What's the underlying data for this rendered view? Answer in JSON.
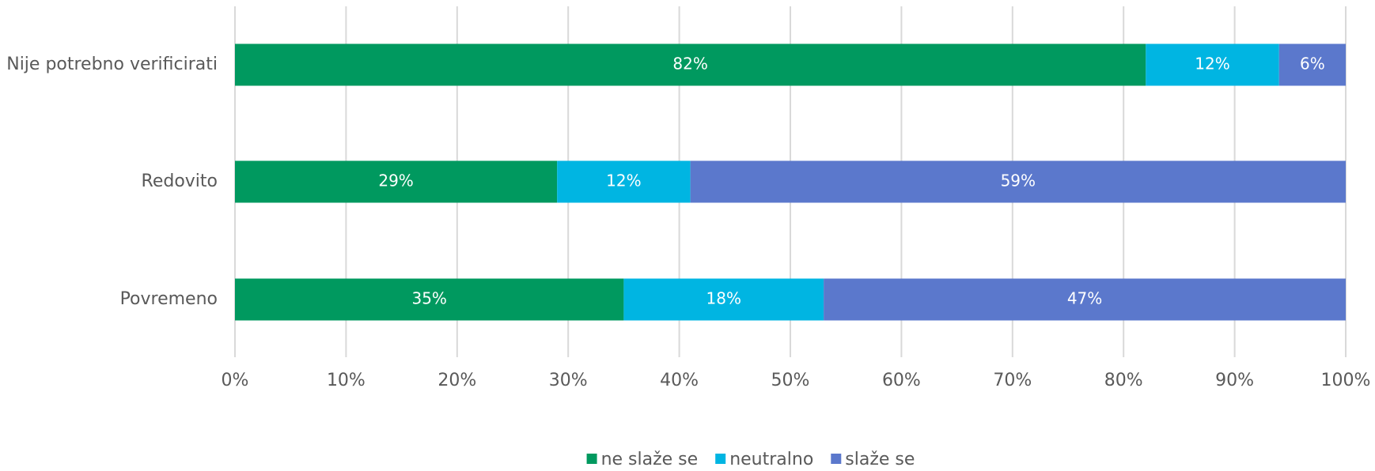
{
  "chart_data": {
    "type": "stacked_barh",
    "categories": [
      "Nije potrebno verificirati",
      "Redovito",
      "Povremeno"
    ],
    "series": [
      {
        "name": "ne slaže se",
        "color": "#00995f",
        "values": [
          82,
          29,
          35
        ],
        "value_labels": [
          "82%",
          "29%",
          "35%"
        ]
      },
      {
        "name": "neutralno",
        "color": "#00b5e2",
        "values": [
          12,
          12,
          18
        ],
        "value_labels": [
          "12%",
          "12%",
          "18%"
        ]
      },
      {
        "name": "slaže se",
        "color": "#5b78cc",
        "values": [
          6,
          59,
          47
        ],
        "value_labels": [
          "6%",
          "59%",
          "47%"
        ]
      }
    ],
    "xlim": [
      0,
      100
    ],
    "xticks": [
      {
        "value": 0,
        "label": "0%"
      },
      {
        "value": 10,
        "label": "10%"
      },
      {
        "value": 20,
        "label": "20%"
      },
      {
        "value": 30,
        "label": "30%"
      },
      {
        "value": 40,
        "label": "40%"
      },
      {
        "value": 50,
        "label": "50%"
      },
      {
        "value": 60,
        "label": "60%"
      },
      {
        "value": 70,
        "label": "70%"
      },
      {
        "value": 80,
        "label": "80%"
      },
      {
        "value": 90,
        "label": "90%"
      },
      {
        "value": 100,
        "label": "100%"
      }
    ],
    "grid": true,
    "legend": "bottom"
  }
}
